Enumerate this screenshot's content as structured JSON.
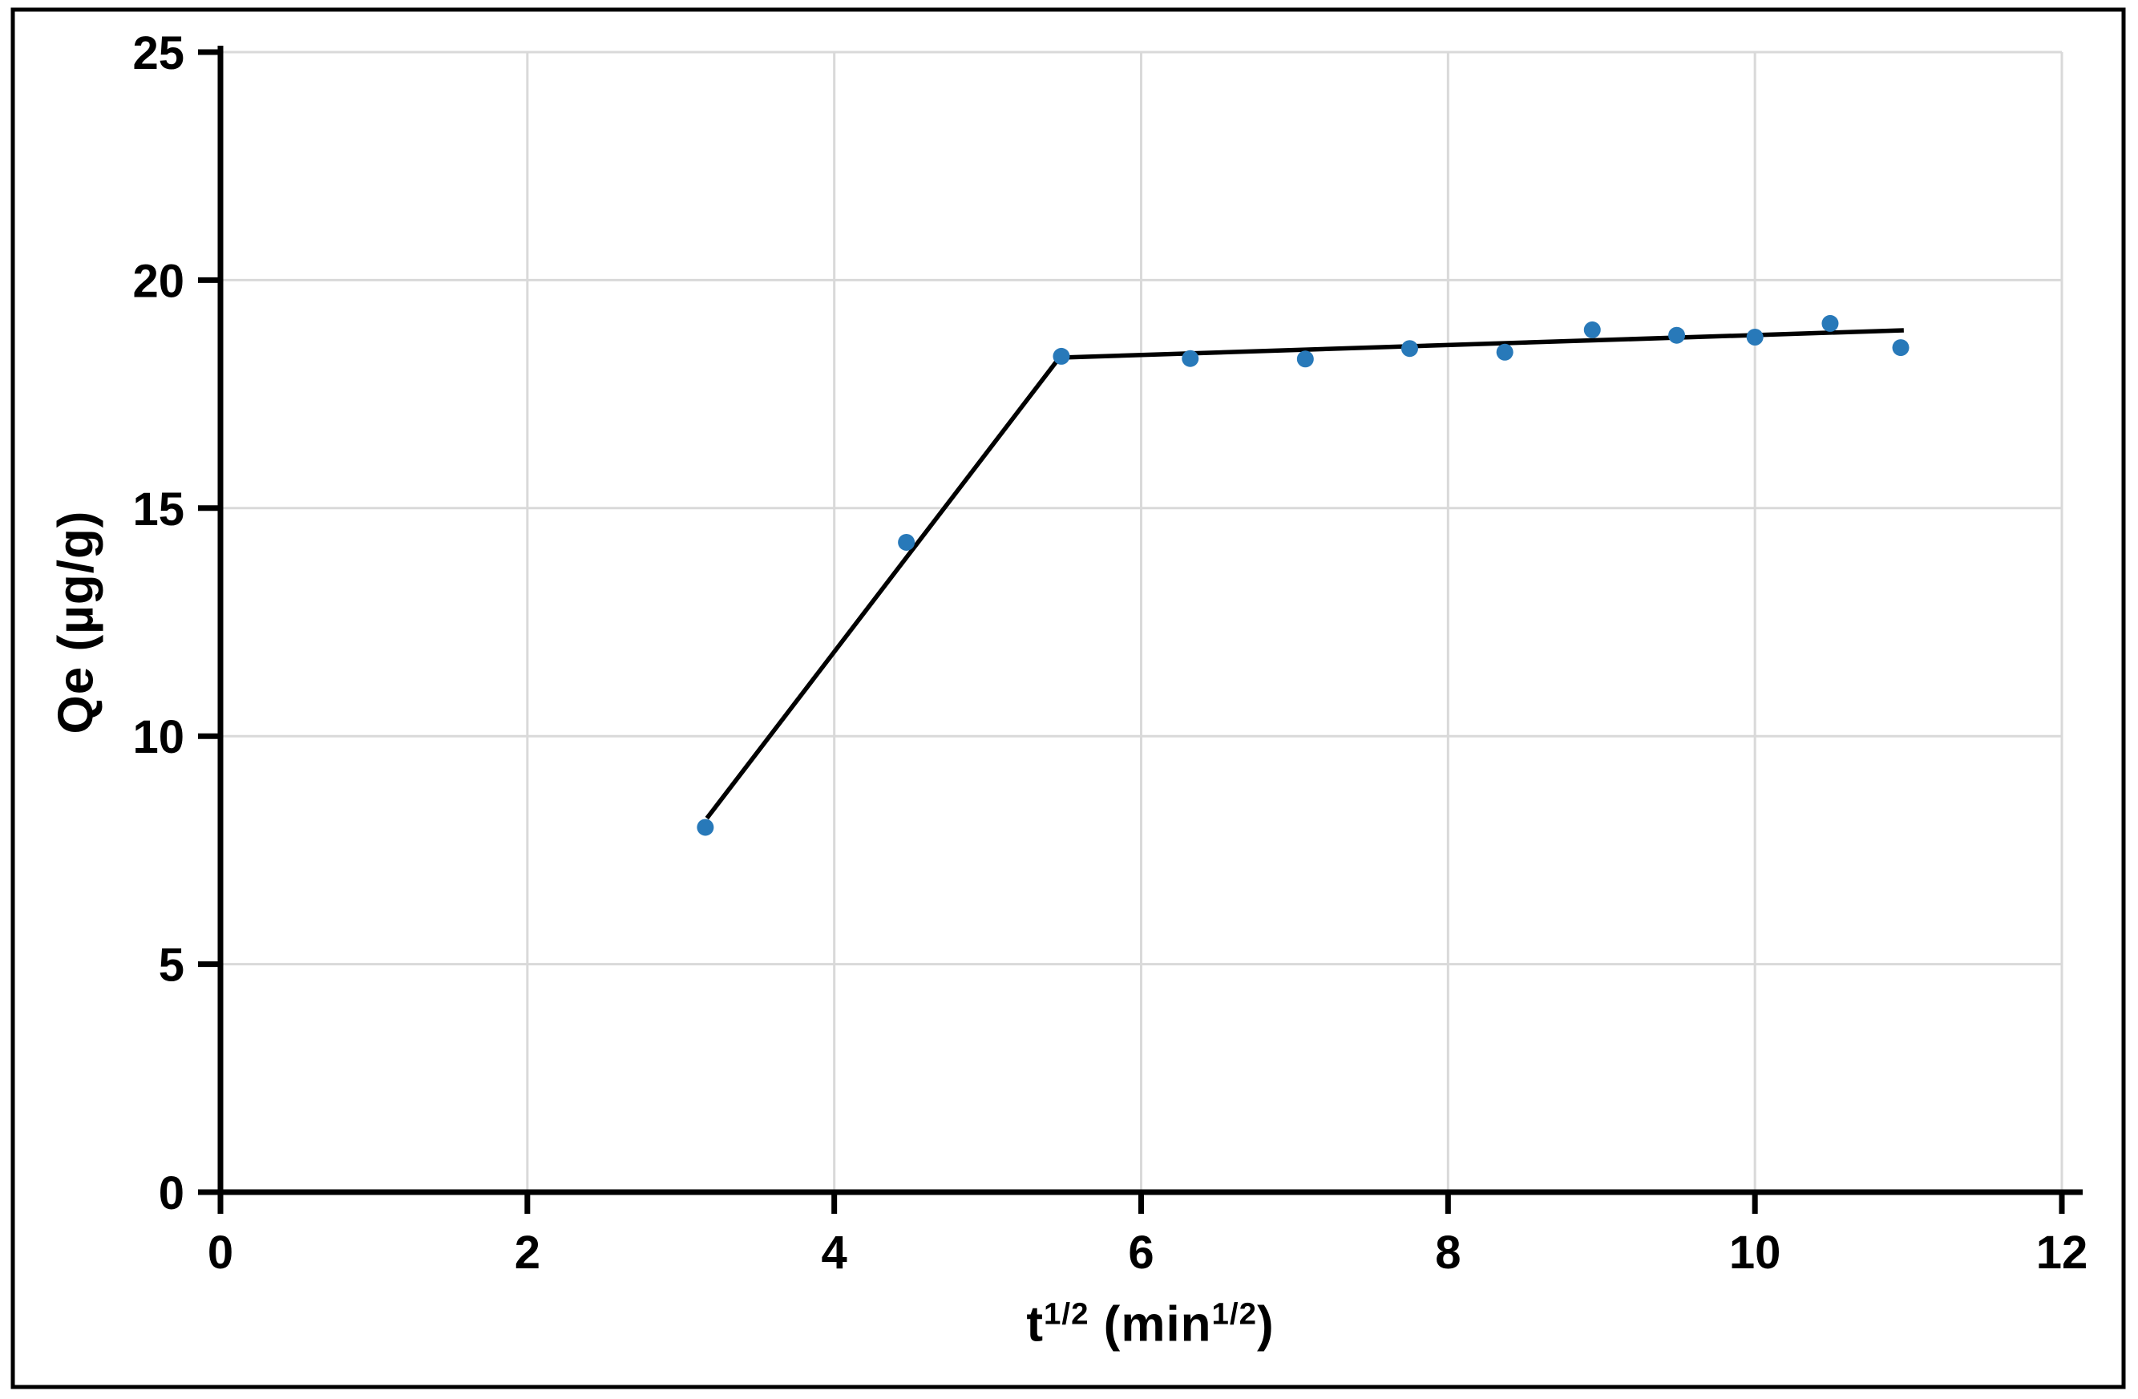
{
  "chart_data": {
    "type": "scatter",
    "title": "",
    "xlabel": "t^(1/2) (min^(1/2))",
    "xlabel_parts": {
      "base1": "t",
      "sup1": "1/2",
      "base2": " (min",
      "sup2": "1/2",
      "base3": ")"
    },
    "ylabel": "Qe (µg/g)",
    "xlim": [
      0,
      12
    ],
    "ylim": [
      0,
      25
    ],
    "x_ticks": [
      0,
      2,
      4,
      6,
      8,
      10,
      12
    ],
    "y_ticks": [
      0,
      5,
      10,
      15,
      20,
      25
    ],
    "grid": true,
    "legend": "none",
    "points": [
      [
        3.16,
        8.0
      ],
      [
        4.47,
        14.25
      ],
      [
        5.48,
        18.33
      ],
      [
        6.32,
        18.28
      ],
      [
        7.07,
        18.27
      ],
      [
        7.75,
        18.5
      ],
      [
        8.37,
        18.42
      ],
      [
        8.94,
        18.91
      ],
      [
        9.49,
        18.79
      ],
      [
        10.0,
        18.75
      ],
      [
        10.49,
        19.05
      ],
      [
        10.95,
        18.52
      ]
    ],
    "trendlines": [
      {
        "x1": 3.17,
        "y1": 8.2,
        "x2": 5.49,
        "y2": 18.4
      },
      {
        "x1": 5.46,
        "y1": 18.3,
        "x2": 10.97,
        "y2": 18.9
      }
    ],
    "colors": {
      "marker": "#2879B9",
      "trendline": "#000000",
      "gridline": "#D9D9D9",
      "axis": "#000000",
      "border": "#000000",
      "background": "#FFFFFF",
      "text": "#000000"
    }
  }
}
